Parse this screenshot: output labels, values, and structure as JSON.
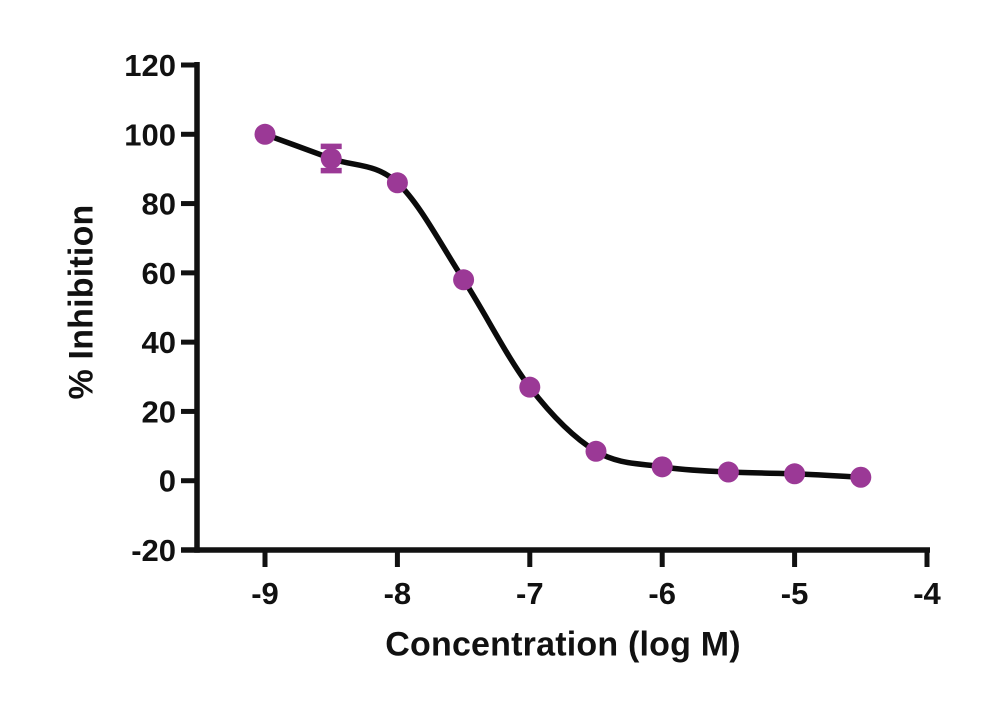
{
  "figure": {
    "background": "#ffffff",
    "axis_color": "#111111"
  },
  "chart_data": {
    "type": "scatter",
    "title": "",
    "xlabel": "Concentration (log M)",
    "ylabel": "% Inhibition",
    "x": [
      -9,
      -8.5,
      -8,
      -7.5,
      -7,
      -6.5,
      -6,
      -5.5,
      -5,
      -4.5
    ],
    "y": [
      100,
      93,
      86,
      58,
      27,
      8.5,
      4,
      2.5,
      2,
      1
    ],
    "y_err": [
      0,
      3.5,
      0,
      0,
      0,
      0,
      0,
      0,
      0,
      0
    ],
    "x_ticks": [
      -9,
      -8,
      -7,
      -6,
      -5,
      -4
    ],
    "x_tick_labels": [
      "-9",
      "-8",
      "-7",
      "-6",
      "-5",
      "-4"
    ],
    "y_ticks": [
      -20,
      0,
      20,
      40,
      60,
      80,
      100,
      120
    ],
    "y_tick_labels": [
      "-20",
      "0",
      "20",
      "40",
      "60",
      "80",
      "100",
      "120"
    ],
    "xlim": [
      -9.6,
      -4
    ],
    "ylim": [
      -20,
      120
    ],
    "curve": "sigmoidal dose-response fit through data points, top ~100, bottom ~1, IC50 ~ 10^-7.4 M",
    "marker_color": "#9B3996",
    "curve_color": "#0b0b0b",
    "axis_color": "#111111",
    "grid": false,
    "legend": null
  }
}
